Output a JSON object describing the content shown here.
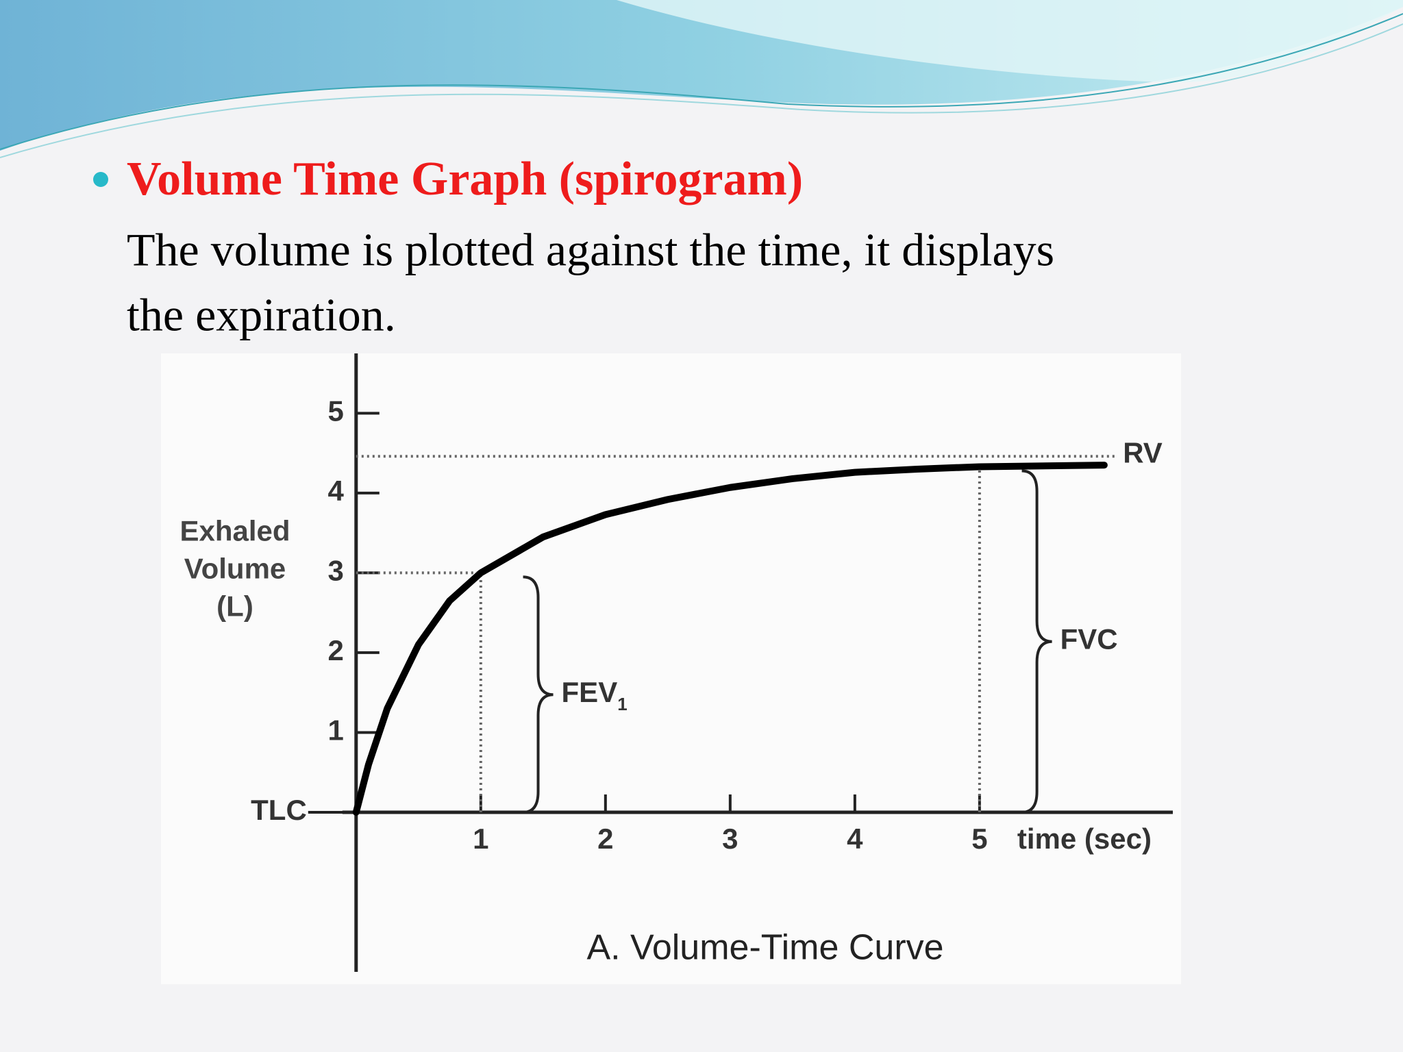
{
  "slide": {
    "heading": "Volume Time Graph (spirogram)",
    "body_lines": [
      "The volume is plotted against the time, it displays",
      "the expiration."
    ]
  },
  "chart_data": {
    "type": "line",
    "title": "A. Volume-Time Curve",
    "x_label": "time (sec)",
    "y_label": [
      "Exhaled",
      "Volume",
      "(L)"
    ],
    "x": [
      0,
      0.1,
      0.25,
      0.5,
      0.75,
      1,
      1.5,
      2,
      2.5,
      3,
      3.5,
      4,
      4.5,
      5,
      6
    ],
    "values": [
      0,
      0.6,
      1.3,
      2.1,
      2.65,
      3.0,
      3.45,
      3.73,
      3.92,
      4.07,
      4.18,
      4.26,
      4.3,
      4.33,
      4.35
    ],
    "color": "#000000",
    "xlim": [
      -0.4,
      6.55
    ],
    "ylim": [
      -2,
      5.75
    ],
    "xticks": [
      1,
      2,
      3,
      4,
      5
    ],
    "yticks": [
      {
        "value": 0,
        "label": "TLC"
      },
      1,
      2,
      3,
      4,
      5
    ],
    "grid": false,
    "reference_lines": [
      {
        "label": "RV",
        "y": 4.46
      }
    ],
    "annotations": [
      {
        "text": "FEV",
        "subscript": "1",
        "x": 1,
        "y": 3
      },
      {
        "text": "FVC",
        "x": 5,
        "y": 4.33
      }
    ]
  }
}
